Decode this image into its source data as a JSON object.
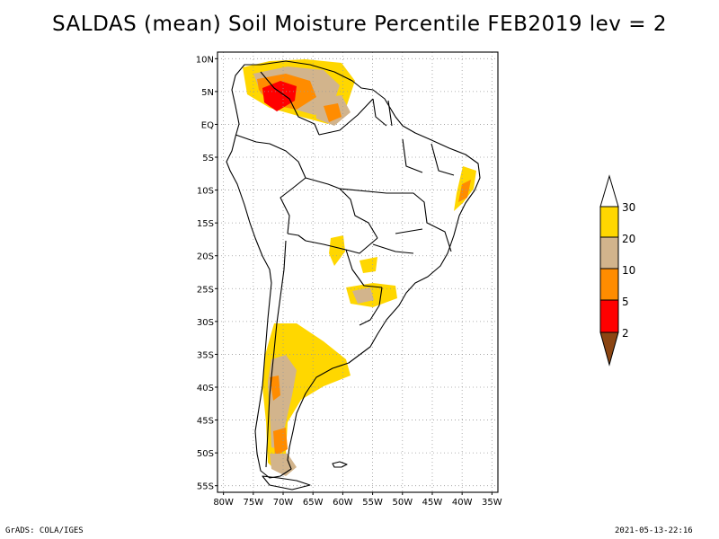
{
  "title": "SALDAS (mean) Soil Moisture Percentile FEB2019 lev = 2",
  "footer": {
    "left": "GrADS: COLA/IGES",
    "right": "2021-05-13-22:16"
  },
  "map": {
    "lat_ticks": [
      "10N",
      "5N",
      "EQ",
      "5S",
      "10S",
      "15S",
      "20S",
      "25S",
      "30S",
      "35S",
      "40S",
      "45S",
      "50S",
      "55S"
    ],
    "lon_ticks": [
      "80W",
      "75W",
      "70W",
      "65W",
      "60W",
      "55W",
      "50W",
      "45W",
      "40W",
      "35W"
    ],
    "lat_values": [
      10,
      5,
      0,
      -5,
      -10,
      -15,
      -20,
      -25,
      -30,
      -35,
      -40,
      -45,
      -50,
      -55
    ],
    "lon_values": [
      -80,
      -75,
      -70,
      -65,
      -60,
      -55,
      -50,
      -45,
      -40,
      -35
    ],
    "lat_range": [
      -56,
      11
    ],
    "lon_range": [
      -81,
      -34
    ]
  },
  "legend": {
    "labels": [
      "2",
      "5",
      "10",
      "20",
      "30"
    ],
    "colors": {
      "over": "#ffffff",
      "20-30": "#ffd700",
      "10-20": "#d2b48c",
      "5-10": "#ff8c00",
      "2-5": "#ff0000",
      "under": "#8b4513"
    }
  }
}
